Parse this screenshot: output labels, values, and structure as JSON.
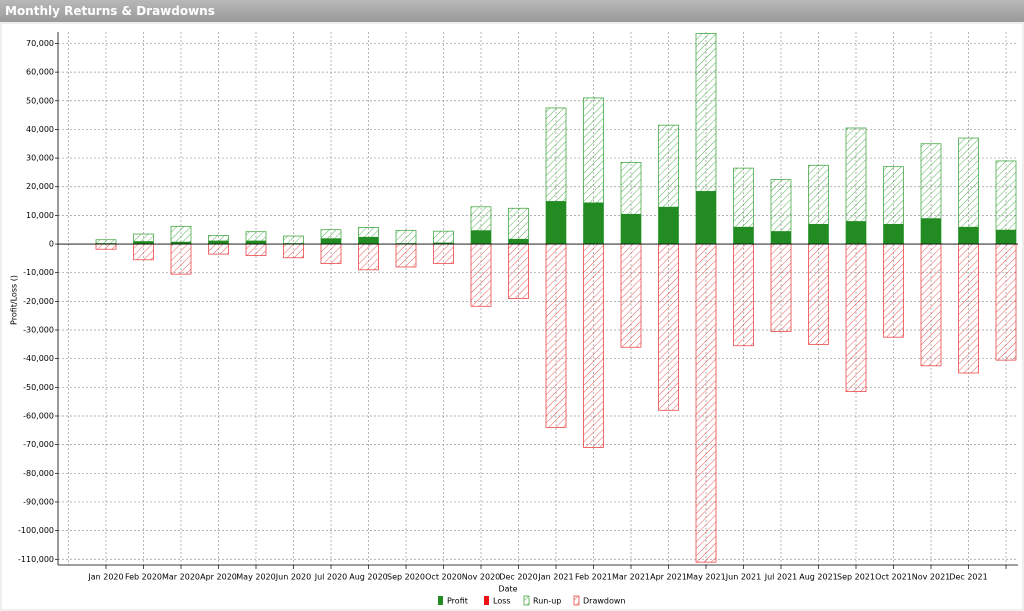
{
  "window_title": "Monthly Returns & Drawdowns",
  "chart_data": {
    "type": "bar",
    "x_label": "Date",
    "y_label": "Profit/Loss ()",
    "categories": [
      "Jan 2020",
      "Feb 2020",
      "Mar 2020",
      "Apr 2020",
      "May 2020",
      "Jun 2020",
      "Jul 2020",
      "Aug 2020",
      "Sep 2020",
      "Oct 2020",
      "Nov 2020",
      "Dec 2020",
      "Jan 2021",
      "Feb 2021",
      "Mar 2021",
      "Apr 2021",
      "May 2021",
      "Jun 2021",
      "Jul 2021",
      "Aug 2021",
      "Sep 2021",
      "Oct 2021",
      "Nov 2021",
      "Dec 2021",
      null
    ],
    "series": [
      {
        "name": "Run-up",
        "color": "#2e9e2e",
        "style": "hatch",
        "values": [
          1500,
          3500,
          6200,
          3000,
          4300,
          2800,
          5000,
          5800,
          4800,
          4500,
          13000,
          12500,
          47500,
          51000,
          28500,
          41500,
          73500,
          26500,
          22500,
          27500,
          40500,
          27000,
          35000,
          37000,
          29000
        ]
      },
      {
        "name": "Drawdown",
        "color": "#e83030",
        "style": "hatch",
        "values": [
          -1800,
          -5500,
          -10500,
          -3500,
          -4000,
          -4800,
          -6800,
          -9000,
          -8000,
          -6800,
          -21700,
          -19000,
          -64000,
          -71000,
          -36000,
          -58000,
          -111000,
          -35500,
          -30500,
          -35000,
          -51500,
          -32500,
          -42500,
          -45000,
          -40500
        ]
      },
      {
        "name": "Profit",
        "color": "#228b22",
        "style": "solid",
        "values": [
          300,
          1000,
          800,
          1200,
          1200,
          300,
          2000,
          2500,
          300,
          500,
          4800,
          1800,
          15000,
          14500,
          10500,
          13000,
          18500,
          6000,
          4500,
          7000,
          8000,
          7000,
          9000,
          6000,
          5000
        ]
      },
      {
        "name": "Loss",
        "color": "#ee1111",
        "style": "solid",
        "values": [
          0,
          0,
          0,
          0,
          0,
          0,
          0,
          0,
          0,
          0,
          0,
          0,
          0,
          0,
          0,
          0,
          0,
          0,
          0,
          0,
          0,
          0,
          0,
          0,
          0
        ]
      }
    ],
    "legend_order": [
      "Profit",
      "Loss",
      "Run-up",
      "Drawdown"
    ],
    "ylim": [
      -112000,
      74000
    ],
    "yticks": [
      {
        "value": 70000,
        "label": "70,000"
      },
      {
        "value": 60000,
        "label": "60,000"
      },
      {
        "value": 50000,
        "label": "50,000"
      },
      {
        "value": 40000,
        "label": "40,000"
      },
      {
        "value": 30000,
        "label": "30,000"
      },
      {
        "value": 20000,
        "label": "20,000"
      },
      {
        "value": 10000,
        "label": "10,000"
      },
      0,
      {
        "value": -10000,
        "label": "-10,000"
      },
      {
        "value": -20000,
        "label": "-20,000"
      },
      {
        "value": -30000,
        "label": "-30,000"
      },
      {
        "value": -40000,
        "label": "-40,000"
      },
      {
        "value": -50000,
        "label": "-50,000"
      },
      {
        "value": -60000,
        "label": "-60,000"
      },
      {
        "value": -70000,
        "label": "-70,000"
      },
      {
        "value": -80000,
        "label": "-80,000"
      },
      {
        "value": -90000,
        "label": "-90,000"
      },
      {
        "value": -100000,
        "label": "-100,000"
      },
      {
        "value": -110000,
        "label": "-110,000"
      }
    ],
    "grid": true
  }
}
